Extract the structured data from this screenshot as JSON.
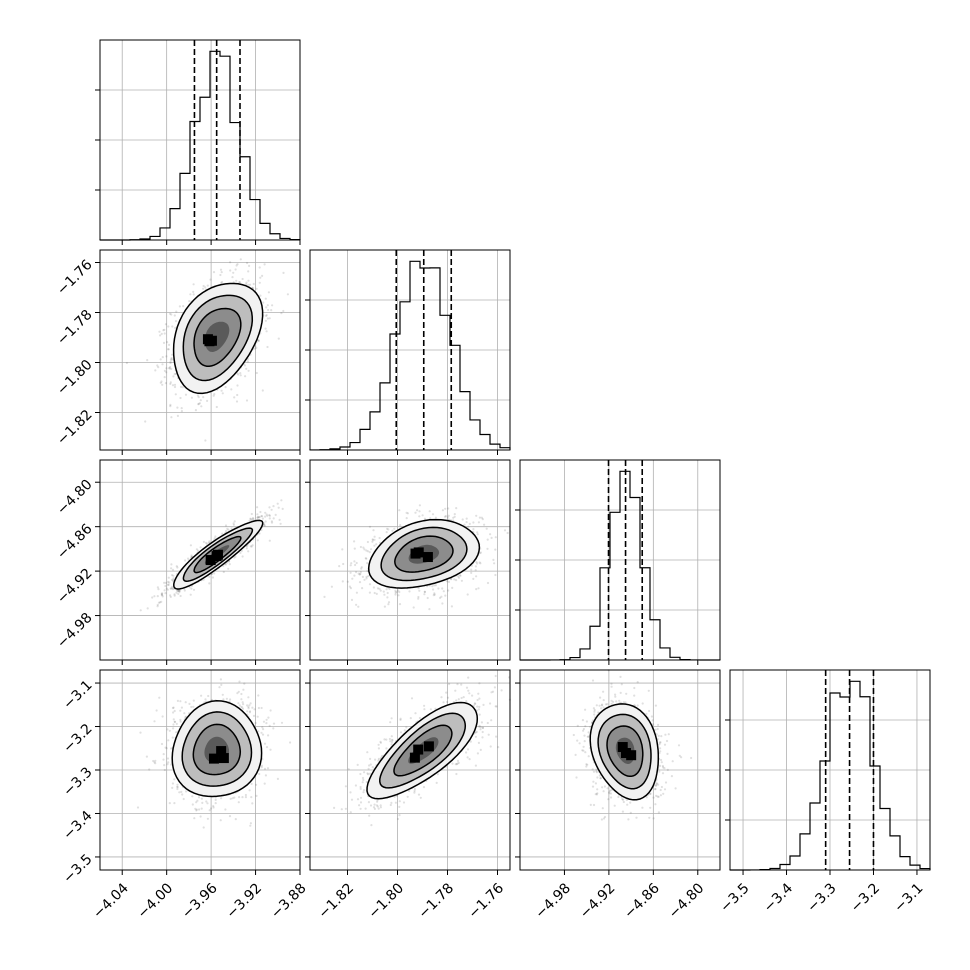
{
  "chart_data": {
    "type": "corner",
    "grid": true,
    "parameters": [
      {
        "range": [
          -4.06,
          -3.88
        ],
        "ticks": [
          -4.04,
          -4.0,
          -3.96,
          -3.92,
          -3.88
        ],
        "tick_labels": [
          "−4.04",
          "−4.00",
          "−3.96",
          "−3.92",
          "−3.88"
        ],
        "mean": -3.955,
        "std": 0.02,
        "quantiles": [
          -3.975,
          -3.955,
          -3.934
        ]
      },
      {
        "range": [
          -1.835,
          -1.755
        ],
        "ticks": [
          -1.82,
          -1.8,
          -1.78,
          -1.76
        ],
        "tick_labels": [
          "−1.82",
          "−1.80",
          "−1.78",
          "−1.76"
        ],
        "mean": -1.7895,
        "std": 0.011,
        "quantiles": [
          -1.8005,
          -1.7895,
          -1.7785
        ]
      },
      {
        "range": [
          -5.04,
          -4.77
        ],
        "ticks": [
          -4.98,
          -4.92,
          -4.86,
          -4.8
        ],
        "tick_labels": [
          "−4.98",
          "−4.92",
          "−4.86",
          "−4.80"
        ],
        "mean": -4.8975,
        "std": 0.023,
        "quantiles": [
          -4.9205,
          -4.8975,
          -4.875
        ]
      },
      {
        "range": [
          -3.53,
          -3.07
        ],
        "ticks": [
          -3.5,
          -3.4,
          -3.3,
          -3.2,
          -3.1
        ],
        "tick_labels": [
          "−3.5",
          "−3.4",
          "−3.3",
          "−3.2",
          "−3.1"
        ],
        "mean": -3.255,
        "std": 0.055,
        "quantiles": [
          -3.31,
          -3.255,
          -3.2
        ]
      }
    ],
    "correlations": [
      [
        0,
        1,
        0.35
      ],
      [
        0,
        2,
        0.9
      ],
      [
        0,
        3,
        0.05
      ],
      [
        1,
        2,
        0.3
      ],
      [
        1,
        3,
        0.75
      ],
      [
        2,
        3,
        -0.2
      ]
    ]
  }
}
